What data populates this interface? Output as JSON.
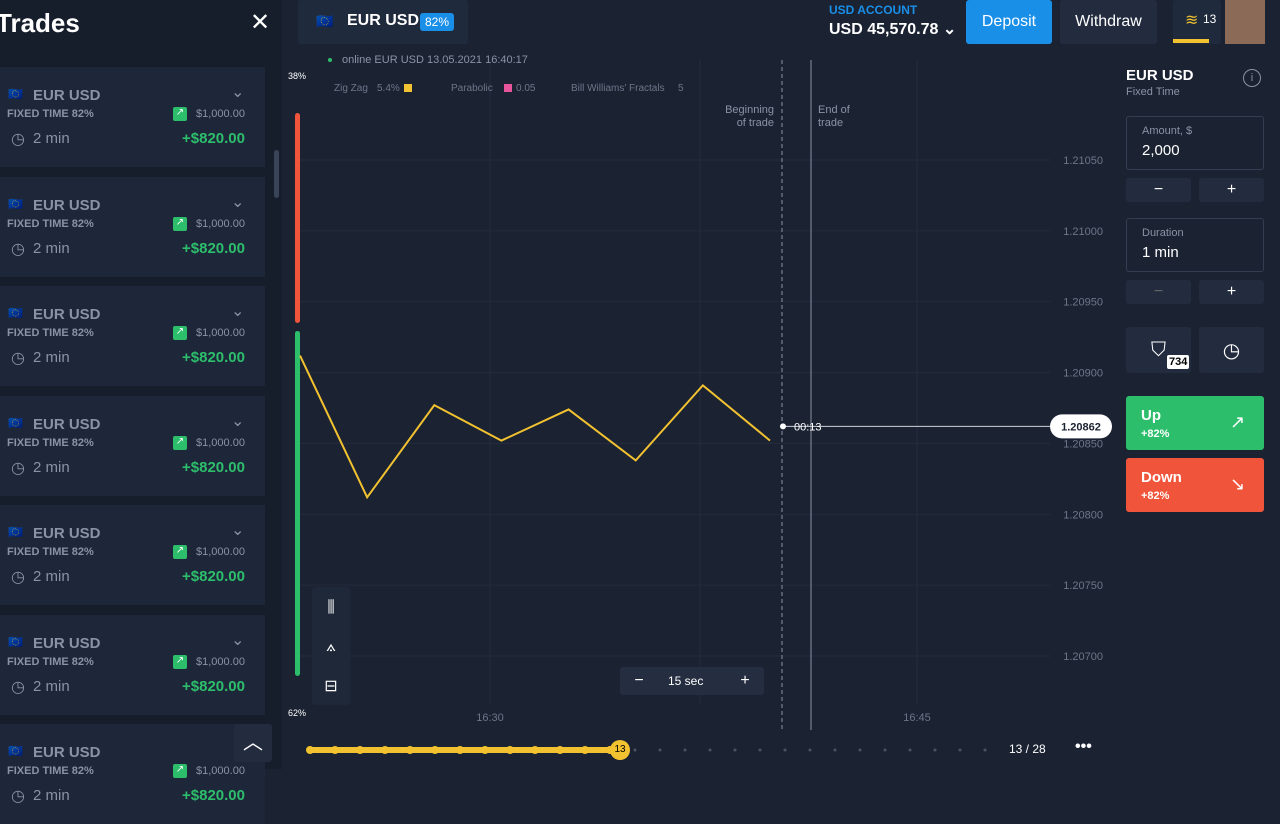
{
  "sidebar": {
    "title": "Trades",
    "trades": [
      {
        "pair": "EUR USD",
        "type": "FIXED TIME 82%",
        "amount": "$1,000.00",
        "duration": "2 min",
        "profit": "+$820.00"
      },
      {
        "pair": "EUR USD",
        "type": "FIXED TIME 82%",
        "amount": "$1,000.00",
        "duration": "2 min",
        "profit": "+$820.00"
      },
      {
        "pair": "EUR USD",
        "type": "FIXED TIME 82%",
        "amount": "$1,000.00",
        "duration": "2 min",
        "profit": "+$820.00"
      },
      {
        "pair": "EUR USD",
        "type": "FIXED TIME 82%",
        "amount": "$1,000.00",
        "duration": "2 min",
        "profit": "+$820.00"
      },
      {
        "pair": "EUR USD",
        "type": "FIXED TIME 82%",
        "amount": "$1,000.00",
        "duration": "2 min",
        "profit": "+$820.00"
      },
      {
        "pair": "EUR USD",
        "type": "FIXED TIME 82%",
        "amount": "$1,000.00",
        "duration": "2 min",
        "profit": "+$820.00"
      },
      {
        "pair": "EUR USD",
        "type": "FIXED TIME 82%",
        "amount": "$1,000.00",
        "duration": "2 min",
        "profit": "+$820.00"
      }
    ]
  },
  "header": {
    "asset": "EUR USD",
    "payout": "82%",
    "account_label": "USD ACCOUNT",
    "balance": "USD 45,570.78",
    "deposit": "Deposit",
    "withdraw": "Withdraw",
    "level": "13"
  },
  "chart_data": {
    "type": "line",
    "status": "online EUR USD 13.05.2021 16:40:17",
    "indicators": [
      "Zig Zag",
      "5.4%",
      "Parabolic",
      "0.05",
      "Bill Williams' Fractals",
      "5"
    ],
    "begin_label": "Beginning of trade",
    "end_label": "End of trade",
    "timer": "00:13",
    "sentiment": {
      "values": [
        38,
        62
      ],
      "value_labels": [
        "38%",
        "62%"
      ],
      "colors": [
        "#f0543a",
        "#2dbe6c"
      ]
    },
    "series": [
      {
        "name": "Zig Zag",
        "color": "#f2c230",
        "values": [
          1.20912,
          1.20812,
          1.20877,
          1.20852,
          1.20874,
          1.20838,
          1.20891,
          1.20852
        ]
      }
    ],
    "ylim": [
      1.20654,
      1.21086
    ],
    "yticks": [
      {
        "value": 1.2105,
        "label": "1.21050"
      },
      {
        "value": 1.21,
        "label": "1.21000"
      },
      {
        "value": 1.2095,
        "label": "1.20950"
      },
      {
        "value": 1.209,
        "label": "1.20900"
      },
      {
        "value": 1.2085,
        "label": "1.20850"
      },
      {
        "value": 1.208,
        "label": "1.20800"
      },
      {
        "value": 1.2075,
        "label": "1.20750"
      },
      {
        "value": 1.207,
        "label": "1.20700"
      }
    ],
    "current_price": {
      "value": 1.20862,
      "label": "1.20862"
    },
    "time_labels": [
      "16:30",
      "16:45"
    ],
    "grid": true
  },
  "footer": {
    "interval": "15 sec",
    "progress": "13",
    "pages": "13 / 28"
  },
  "panel": {
    "asset": "EUR USD",
    "mode": "Fixed Time",
    "amount_label": "Amount, $",
    "amount": "2,000",
    "duration_label": "Duration",
    "duration": "1 min",
    "shield_count": "734",
    "up": "Up",
    "up_payout": "+82%",
    "down": "Down",
    "down_payout": "+82%"
  }
}
